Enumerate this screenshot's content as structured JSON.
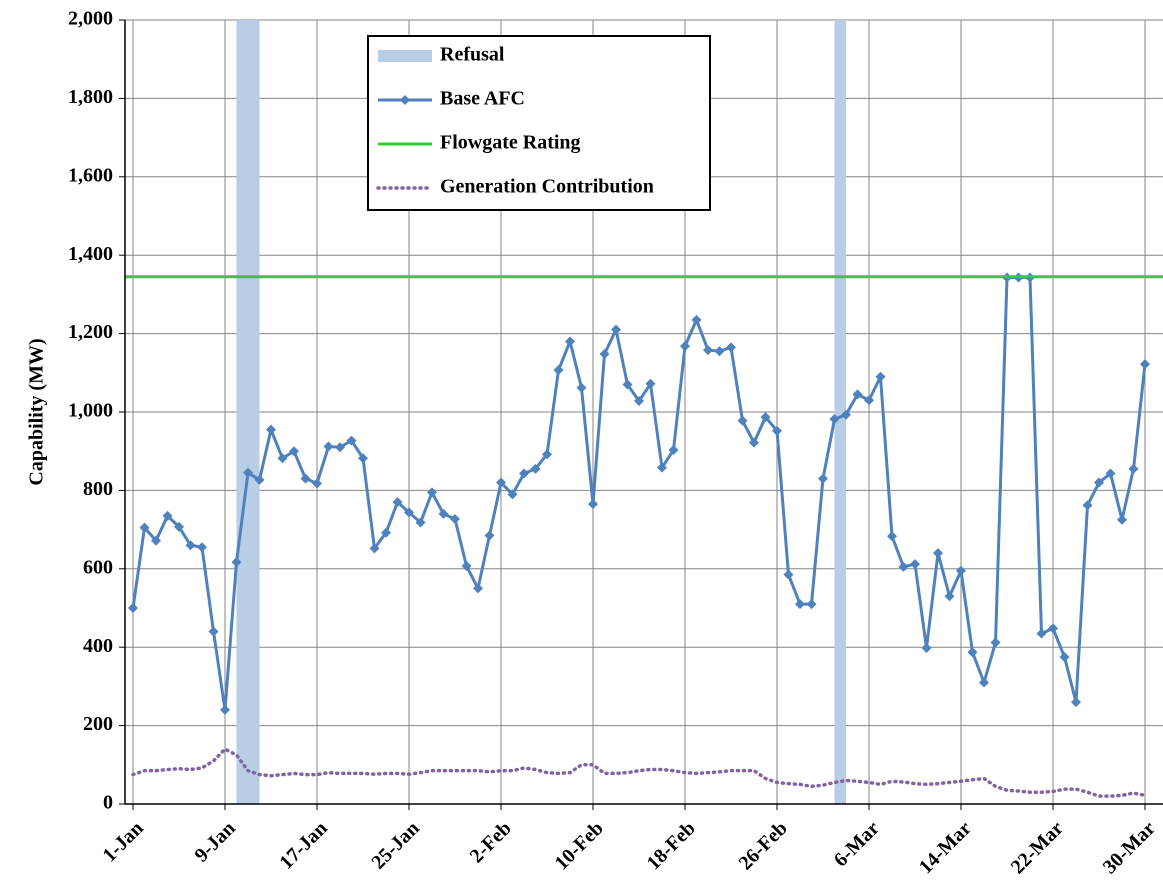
{
  "chart_data": {
    "type": "line",
    "y_label": "Capability (MW)",
    "categories": [
      "1-Jan",
      null,
      null,
      null,
      null,
      null,
      null,
      null,
      "9-Jan",
      null,
      null,
      null,
      null,
      null,
      null,
      null,
      "17-Jan",
      null,
      null,
      null,
      null,
      null,
      null,
      null,
      "25-Jan",
      null,
      null,
      null,
      null,
      null,
      null,
      null,
      "2-Feb",
      null,
      null,
      null,
      null,
      null,
      null,
      null,
      "10-Feb",
      null,
      null,
      null,
      null,
      null,
      null,
      null,
      "18-Feb",
      null,
      null,
      null,
      null,
      null,
      null,
      null,
      "26-Feb",
      null,
      null,
      null,
      null,
      null,
      null,
      null,
      "6-Mar",
      null,
      null,
      null,
      null,
      null,
      null,
      null,
      "14-Mar",
      null,
      null,
      null,
      null,
      null,
      null,
      null,
      "22-Mar",
      null,
      null,
      null,
      null,
      null,
      null,
      null,
      "30-Mar"
    ],
    "series": [
      {
        "name": "Refusal",
        "color": "#b9cde5",
        "style": "band",
        "ranges": [
          [
            9,
            11
          ],
          [
            61,
            62
          ]
        ]
      },
      {
        "name": "Base AFC",
        "color": "#4f81bd",
        "style": "marker-line",
        "values": [
          500,
          705,
          672,
          735,
          707,
          660,
          655,
          440,
          240,
          617,
          845,
          827,
          955,
          882,
          900,
          830,
          818,
          912,
          910,
          927,
          882,
          652,
          692,
          770,
          744,
          718,
          795,
          740,
          727,
          607,
          550,
          685,
          820,
          790,
          843,
          855,
          892,
          1107,
          1180,
          1062,
          765,
          1148,
          1210,
          1070,
          1028,
          1072,
          858,
          903,
          1168,
          1235,
          1158,
          1155,
          1165,
          978,
          922,
          987,
          952,
          585,
          510,
          510,
          830,
          982,
          993,
          1045,
          1030,
          1090,
          683,
          605,
          612,
          398,
          640,
          530,
          595,
          387,
          310,
          412,
          1343,
          1343,
          1343,
          435,
          448,
          375,
          260,
          762,
          820,
          843,
          725,
          855,
          1122
        ]
      },
      {
        "name": "Flowgate Rating",
        "color": "#33cc33",
        "style": "hline",
        "value": 1345
      },
      {
        "name": "Generation Contribution",
        "color": "#8064a2",
        "style": "dotted",
        "values": [
          75,
          85,
          85,
          88,
          90,
          88,
          92,
          110,
          140,
          125,
          85,
          75,
          72,
          75,
          78,
          75,
          75,
          80,
          78,
          78,
          78,
          76,
          78,
          78,
          76,
          80,
          85,
          85,
          85,
          85,
          85,
          82,
          85,
          85,
          92,
          88,
          80,
          78,
          80,
          100,
          100,
          78,
          78,
          80,
          85,
          88,
          88,
          85,
          80,
          78,
          80,
          82,
          85,
          85,
          85,
          65,
          55,
          52,
          50,
          45,
          48,
          55,
          60,
          58,
          55,
          50,
          58,
          56,
          52,
          50,
          52,
          55,
          58,
          62,
          65,
          45,
          35,
          33,
          30,
          30,
          32,
          38,
          38,
          30,
          20,
          20,
          22,
          28,
          22
        ]
      }
    ],
    "ylim": [
      0,
      2000
    ],
    "yticks": [
      0,
      200,
      400,
      600,
      800,
      {
        "value": 1000,
        "label": "1,000"
      },
      {
        "value": 1200,
        "label": "1,200"
      },
      {
        "value": 1400,
        "label": "1,400"
      },
      {
        "value": 1600,
        "label": "1,600"
      },
      {
        "value": 1800,
        "label": "1,800"
      },
      {
        "value": 2000,
        "label": "2,000"
      }
    ],
    "grid": true
  }
}
